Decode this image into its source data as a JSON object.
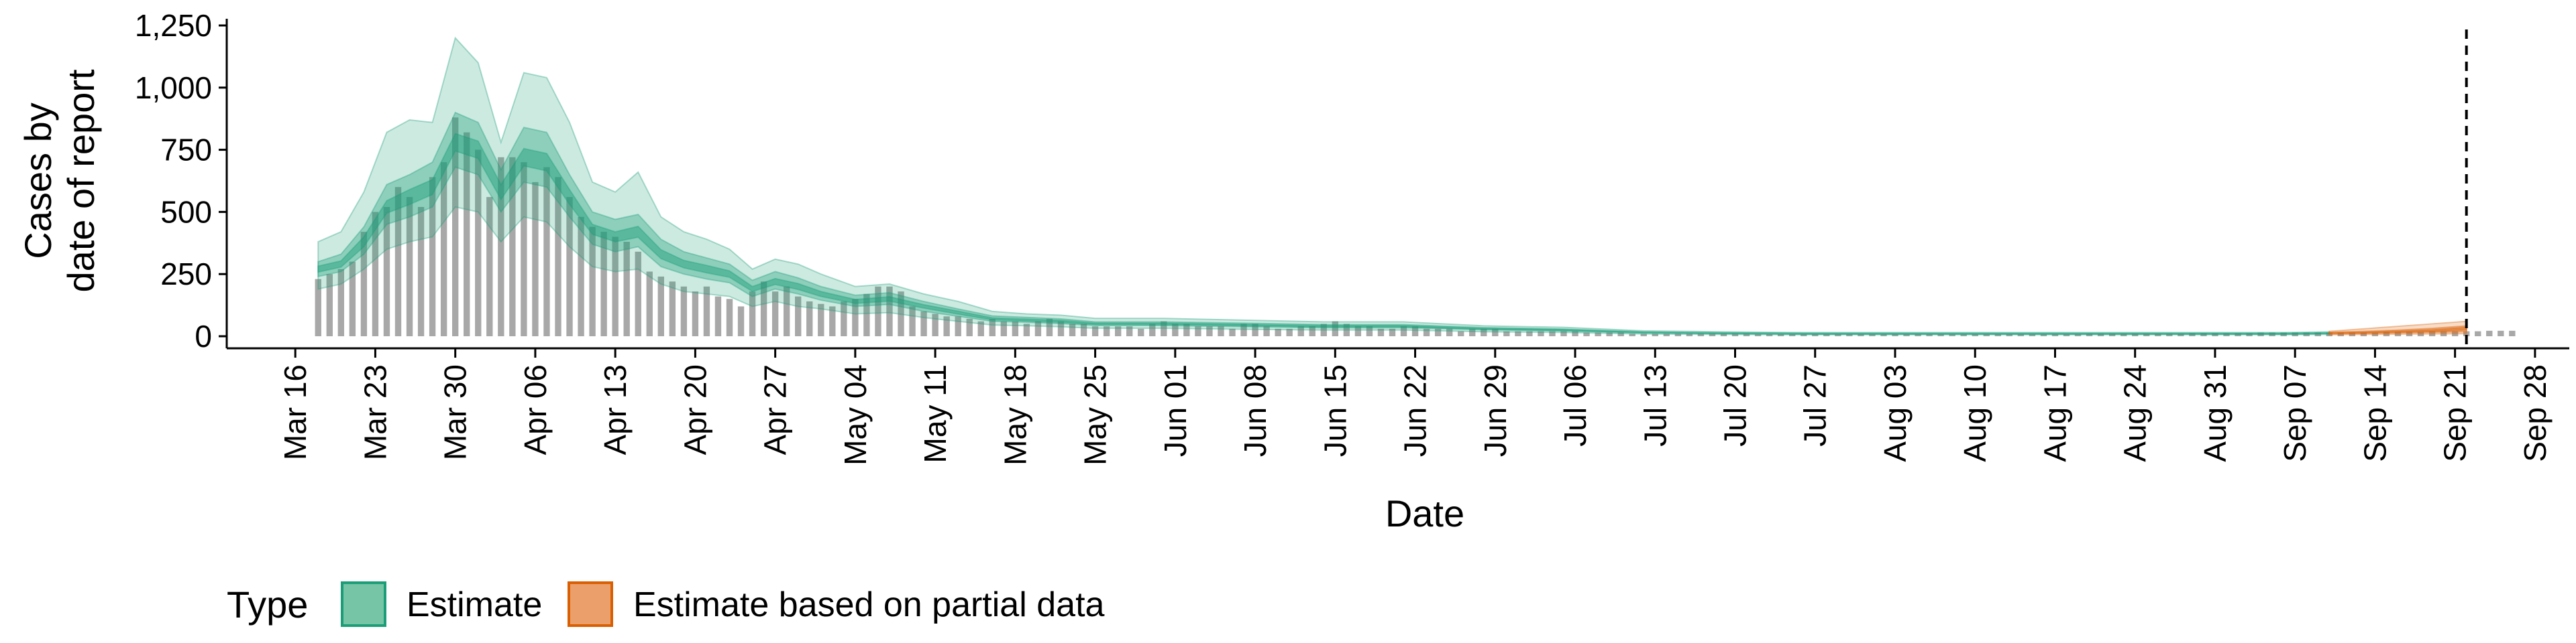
{
  "chart_data": {
    "type": "area",
    "title": "",
    "xlabel": "Date",
    "ylabel": [
      "Cases by",
      "date of report"
    ],
    "ylim": [
      0,
      1250
    ],
    "yticks": [
      0,
      250,
      500,
      750,
      1000,
      1250
    ],
    "ytick_labels": [
      "0",
      "250",
      "500",
      "750",
      "1,000",
      "1,250"
    ],
    "xlim": [
      "2020-03-10",
      "2020-10-01"
    ],
    "xticks": [
      "2020-03-16",
      "2020-03-23",
      "2020-03-30",
      "2020-04-06",
      "2020-04-13",
      "2020-04-20",
      "2020-04-27",
      "2020-05-04",
      "2020-05-11",
      "2020-05-18",
      "2020-05-25",
      "2020-06-01",
      "2020-06-08",
      "2020-06-15",
      "2020-06-22",
      "2020-06-29",
      "2020-07-06",
      "2020-07-13",
      "2020-07-20",
      "2020-07-27",
      "2020-08-03",
      "2020-08-10",
      "2020-08-17",
      "2020-08-24",
      "2020-08-31",
      "2020-09-07",
      "2020-09-14",
      "2020-09-21",
      "2020-09-28"
    ],
    "xtick_labels": [
      "Mar 16",
      "Mar 23",
      "Mar 30",
      "Apr 06",
      "Apr 13",
      "Apr 20",
      "Apr 27",
      "May 04",
      "May 11",
      "May 18",
      "May 25",
      "Jun 01",
      "Jun 08",
      "Jun 15",
      "Jun 22",
      "Jun 29",
      "Jul 06",
      "Jul 13",
      "Jul 20",
      "Jul 27",
      "Aug 03",
      "Aug 10",
      "Aug 17",
      "Aug 24",
      "Aug 31",
      "Sep 07",
      "Sep 14",
      "Sep 21",
      "Sep 28"
    ],
    "vline_date": "2020-09-22",
    "grid": false,
    "legend": {
      "title": "Type",
      "position": "bottom-left",
      "entries": [
        {
          "label": "Estimate",
          "fill": "#75c5a6",
          "stroke": "#1b9e77"
        },
        {
          "label": "Estimate based on partial data",
          "fill": "#eba06b",
          "stroke": "#d95f02"
        }
      ]
    },
    "colors": {
      "estimate": "#1b9e77",
      "partial": "#d95f02",
      "bars": "#a8a8a8",
      "vline": "#000000"
    },
    "observed_cases": {
      "start": "2020-03-18",
      "values": [
        230,
        250,
        270,
        300,
        420,
        500,
        520,
        600,
        560,
        520,
        640,
        700,
        880,
        820,
        750,
        560,
        720,
        720,
        700,
        620,
        680,
        640,
        560,
        480,
        440,
        420,
        400,
        380,
        340,
        260,
        240,
        220,
        200,
        180,
        200,
        160,
        150,
        120,
        180,
        220,
        180,
        200,
        160,
        140,
        130,
        120,
        140,
        150,
        170,
        200,
        200,
        180,
        120,
        100,
        90,
        80,
        80,
        70,
        60,
        70,
        60,
        60,
        50,
        60,
        70,
        60,
        50,
        50,
        40,
        40,
        40,
        40,
        30,
        50,
        60,
        50,
        50,
        40,
        40,
        40,
        30,
        50,
        50,
        40,
        30,
        30,
        40,
        40,
        50,
        60,
        50,
        40,
        40,
        30,
        30,
        40,
        40,
        30,
        30,
        30,
        20,
        30,
        30,
        30,
        20,
        20,
        20,
        20,
        20,
        20,
        20,
        15,
        15,
        15,
        15,
        10,
        10,
        10,
        10,
        10,
        10,
        10,
        10,
        10,
        10,
        10,
        8,
        8,
        8,
        8,
        8,
        8,
        8,
        8,
        8,
        8,
        8,
        8,
        8,
        8,
        8,
        8,
        8,
        8,
        8,
        8,
        8,
        8,
        8,
        8,
        8,
        8,
        8,
        8,
        8,
        10,
        10,
        10,
        10,
        10,
        10,
        10,
        10,
        10,
        12,
        12,
        12,
        12,
        12,
        12,
        15,
        15,
        15,
        15,
        15,
        15,
        15,
        15,
        15,
        15,
        15,
        18,
        18,
        18,
        18,
        20,
        20,
        20,
        20,
        20,
        22,
        22,
        22
      ]
    },
    "estimate": {
      "dates": [
        "2020-03-18",
        "2020-03-20",
        "2020-03-22",
        "2020-03-24",
        "2020-03-26",
        "2020-03-28",
        "2020-03-30",
        "2020-04-01",
        "2020-04-03",
        "2020-04-05",
        "2020-04-07",
        "2020-04-09",
        "2020-04-11",
        "2020-04-13",
        "2020-04-15",
        "2020-04-17",
        "2020-04-19",
        "2020-04-21",
        "2020-04-23",
        "2020-04-25",
        "2020-04-27",
        "2020-04-29",
        "2020-05-01",
        "2020-05-04",
        "2020-05-07",
        "2020-05-10",
        "2020-05-13",
        "2020-05-16",
        "2020-05-19",
        "2020-05-22",
        "2020-05-25",
        "2020-05-31",
        "2020-06-07",
        "2020-06-14",
        "2020-06-21",
        "2020-06-28",
        "2020-07-05",
        "2020-07-12",
        "2020-07-19",
        "2020-07-26",
        "2020-08-02",
        "2020-08-09",
        "2020-08-16",
        "2020-08-23",
        "2020-08-30",
        "2020-09-06",
        "2020-09-10"
      ],
      "median": [
        270,
        290,
        380,
        520,
        560,
        600,
        780,
        750,
        580,
        720,
        700,
        560,
        430,
        400,
        420,
        330,
        290,
        270,
        250,
        190,
        220,
        200,
        170,
        140,
        150,
        120,
        95,
        70,
        65,
        60,
        50,
        50,
        45,
        40,
        40,
        30,
        25,
        15,
        12,
        10,
        10,
        10,
        10,
        10,
        10,
        10,
        12
      ],
      "lower90": [
        190,
        210,
        270,
        350,
        380,
        400,
        520,
        500,
        380,
        480,
        460,
        360,
        280,
        260,
        270,
        210,
        180,
        170,
        160,
        120,
        140,
        120,
        110,
        90,
        95,
        75,
        60,
        45,
        42,
        38,
        32,
        32,
        28,
        25,
        25,
        18,
        15,
        9,
        7,
        6,
        6,
        6,
        6,
        6,
        6,
        6,
        7
      ],
      "upper90": [
        380,
        420,
        580,
        820,
        870,
        860,
        1200,
        1100,
        780,
        1060,
        1040,
        860,
        620,
        580,
        660,
        480,
        420,
        390,
        350,
        270,
        310,
        290,
        250,
        200,
        210,
        170,
        140,
        100,
        90,
        85,
        72,
        72,
        65,
        58,
        58,
        42,
        36,
        22,
        18,
        15,
        15,
        15,
        15,
        15,
        15,
        15,
        18
      ],
      "lower50": [
        240,
        260,
        330,
        450,
        480,
        520,
        680,
        650,
        500,
        620,
        600,
        480,
        370,
        340,
        360,
        280,
        250,
        230,
        215,
        160,
        190,
        170,
        145,
        120,
        128,
        100,
        80,
        60,
        56,
        51,
        43,
        43,
        38,
        34,
        34,
        26,
        21,
        13,
        10,
        8,
        8,
        8,
        8,
        8,
        8,
        8,
        10
      ],
      "upper50": [
        300,
        330,
        440,
        610,
        650,
        700,
        900,
        860,
        670,
        840,
        820,
        650,
        500,
        470,
        490,
        390,
        340,
        315,
        290,
        225,
        260,
        235,
        200,
        165,
        175,
        140,
        110,
        82,
        76,
        70,
        58,
        58,
        53,
        47,
        47,
        35,
        29,
        18,
        14,
        12,
        12,
        12,
        12,
        12,
        12,
        12,
        14
      ],
      "lower20": [
        258,
        278,
        360,
        495,
        530,
        570,
        745,
        715,
        550,
        685,
        665,
        530,
        410,
        380,
        398,
        312,
        275,
        255,
        237,
        180,
        208,
        188,
        160,
        132,
        141,
        113,
        89,
        66,
        61,
        56,
        47,
        47,
        42,
        37,
        37,
        28,
        23,
        14,
        11,
        9,
        9,
        9,
        9,
        9,
        9,
        9,
        11
      ],
      "upper20": [
        282,
        303,
        400,
        545,
        590,
        630,
        815,
        785,
        610,
        755,
        735,
        590,
        450,
        420,
        442,
        348,
        305,
        285,
        263,
        200,
        232,
        212,
        180,
        148,
        159,
        127,
        101,
        74,
        69,
        64,
        53,
        53,
        48,
        43,
        43,
        32,
        27,
        16,
        13,
        11,
        11,
        11,
        11,
        11,
        11,
        11,
        13
      ]
    },
    "partial_estimate": {
      "dates": [
        "2020-09-10",
        "2020-09-13",
        "2020-09-16",
        "2020-09-19",
        "2020-09-22"
      ],
      "median": [
        12,
        15,
        18,
        22,
        30
      ],
      "lower90": [
        6,
        7,
        8,
        9,
        10
      ],
      "upper90": [
        20,
        30,
        40,
        50,
        60
      ],
      "lower50": [
        9,
        11,
        13,
        15,
        18
      ],
      "upper50": [
        16,
        20,
        25,
        32,
        42
      ],
      "lower20": [
        11,
        13,
        16,
        19,
        25
      ],
      "upper20": [
        14,
        17,
        21,
        26,
        36
      ]
    }
  }
}
